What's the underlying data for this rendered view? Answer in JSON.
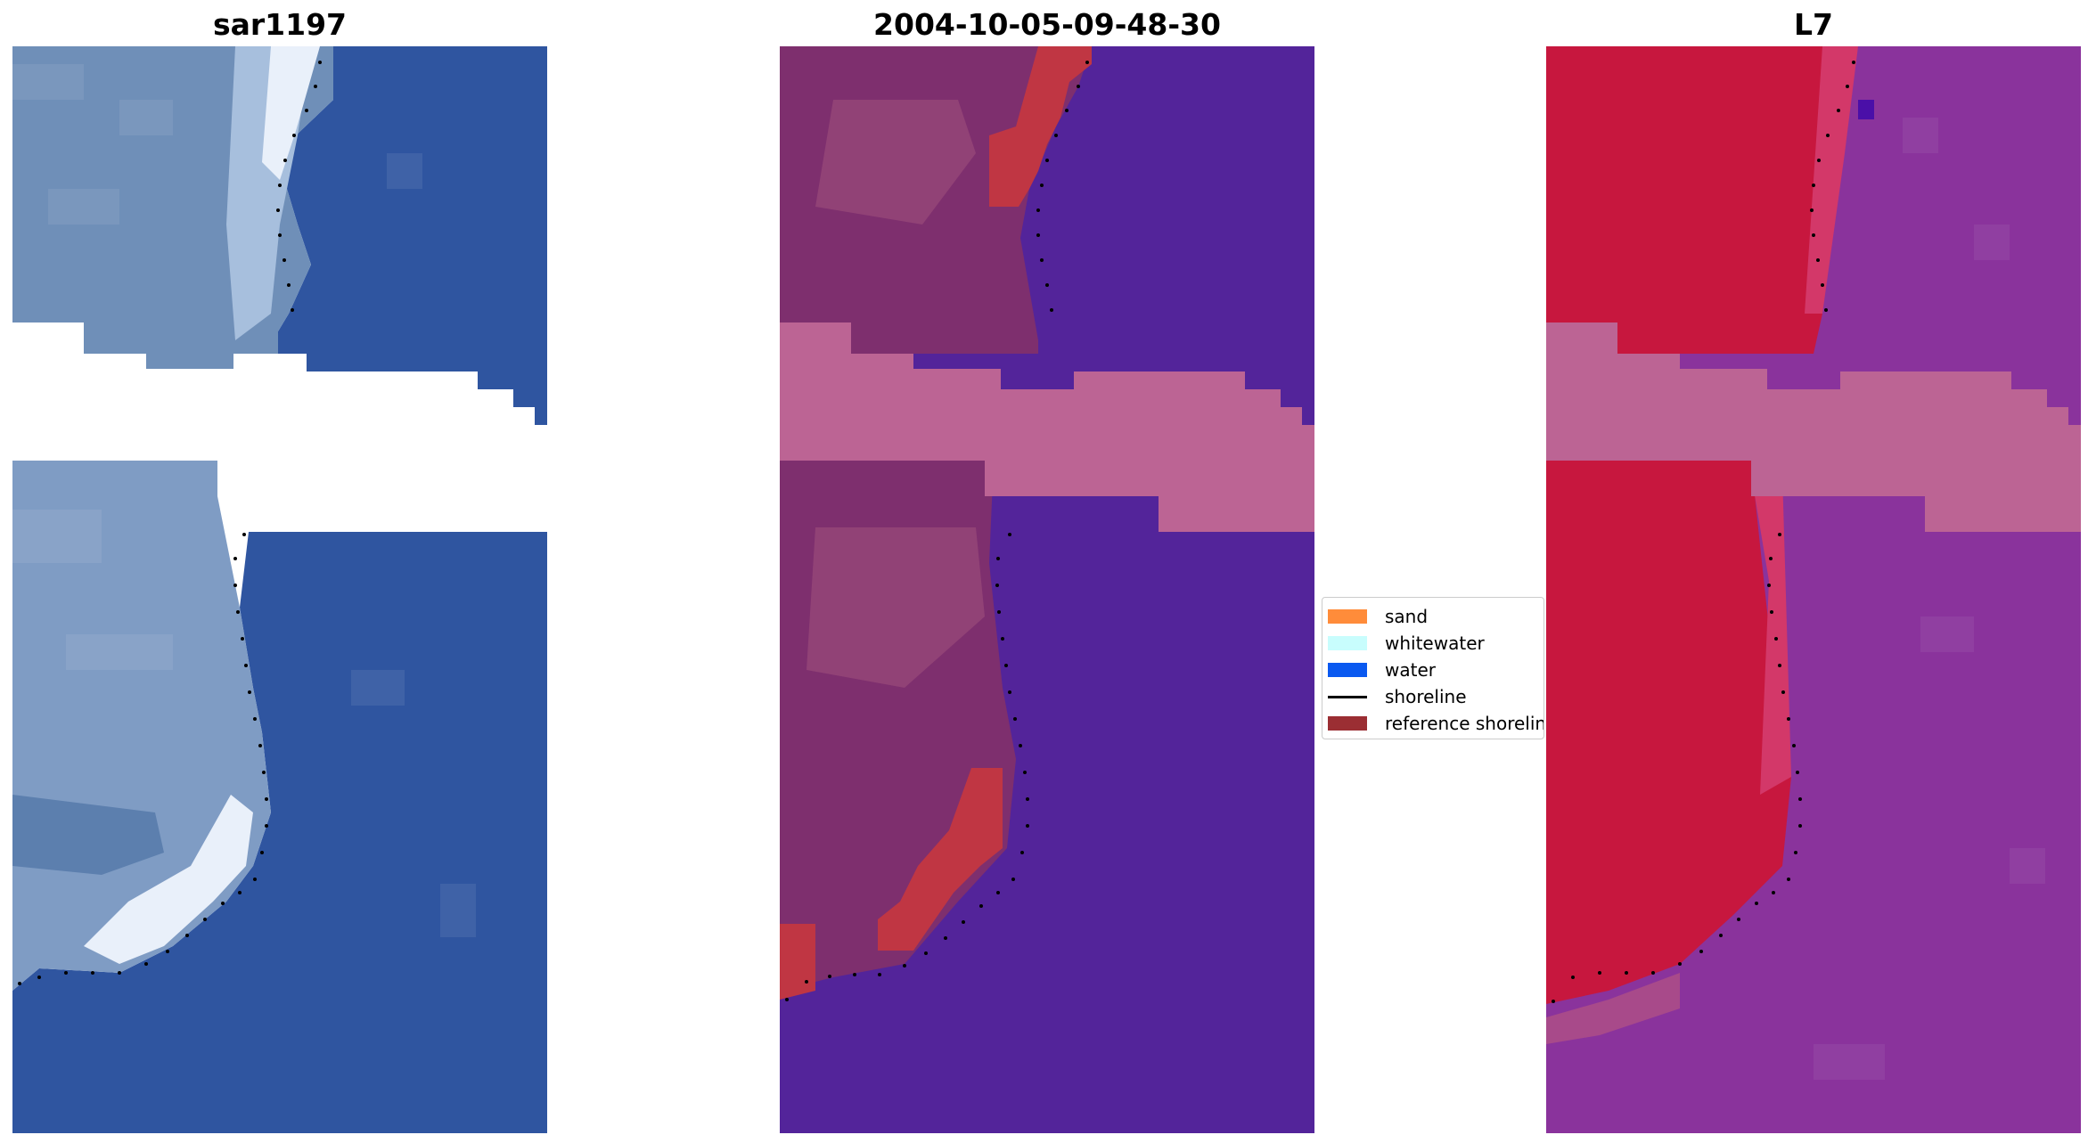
{
  "panels": [
    {
      "title": "sar1197"
    },
    {
      "title": "2004-10-05-09-48-30"
    },
    {
      "title": "L7"
    }
  ],
  "legend": {
    "items": [
      {
        "label": "sand",
        "color": "#ff8c3a",
        "kind": "patch"
      },
      {
        "label": "whitewater",
        "color": "#c8fdfd",
        "kind": "patch"
      },
      {
        "label": "water",
        "color": "#0a59f0",
        "kind": "patch"
      },
      {
        "label": "shoreline",
        "color": "#000000",
        "kind": "line"
      },
      {
        "label": "reference shoreline",
        "color": "#9b2e33",
        "kind": "patch"
      }
    ]
  },
  "colors": {
    "rgb_water": "#2f55a0",
    "rgb_beach": "#7f9cc4",
    "rgb_whitewater": "#e9f0fa",
    "class_water": "#53249a",
    "class_land": "#7e2f6e",
    "class_cloud_mask": "#bc6494",
    "class_sand_overlay": "#c03643",
    "index_land": "#c7173e",
    "index_water": "#8a339c",
    "index_cloud_mask": "#bc6494",
    "shoreline_dots": "#000000"
  }
}
